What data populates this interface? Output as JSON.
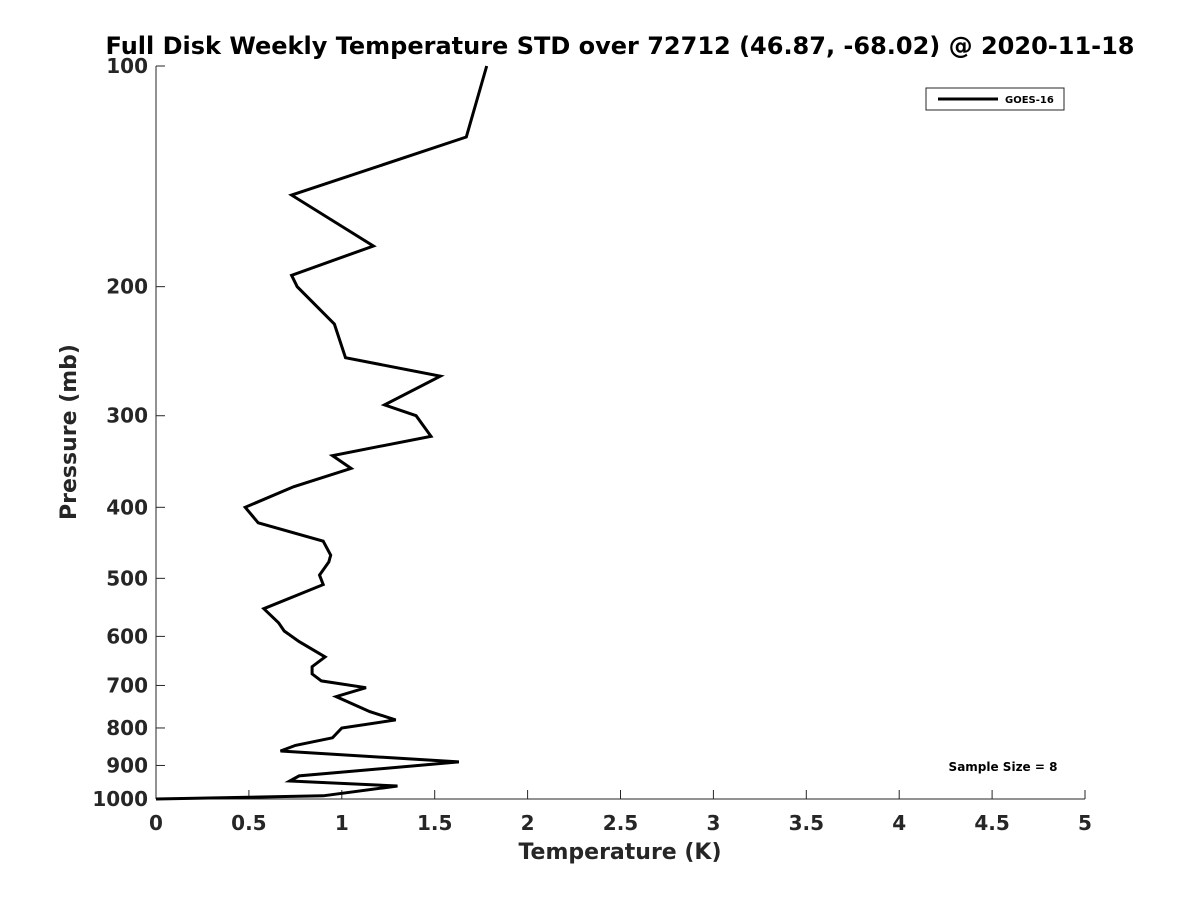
{
  "chart_data": {
    "type": "line",
    "title": "Full Disk Weekly Temperature STD over 72712 (46.87, -68.02) @ 2020-11-18",
    "xlabel": "Temperature (K)",
    "ylabel": "Pressure (mb)",
    "xlim": [
      0,
      5
    ],
    "ylim": [
      100,
      1000
    ],
    "y_scale": "log",
    "y_reversed": true,
    "x_ticks": [
      "0",
      "0.5",
      "1",
      "1.5",
      "2",
      "2.5",
      "3",
      "3.5",
      "4",
      "4.5",
      "5"
    ],
    "y_ticks": [
      "100",
      "200",
      "300",
      "400",
      "500",
      "600",
      "700",
      "800",
      "900",
      "1000"
    ],
    "grid": false,
    "legend_position": "top-right",
    "annotation": "Sample Size = 8",
    "series": [
      {
        "name": "GOES-16",
        "color": "#000000",
        "points": [
          [
            1.78,
            100
          ],
          [
            1.67,
            125
          ],
          [
            0.73,
            150
          ],
          [
            1.17,
            176
          ],
          [
            0.73,
            193
          ],
          [
            0.76,
            200
          ],
          [
            0.96,
            225
          ],
          [
            1.02,
            250
          ],
          [
            1.53,
            265
          ],
          [
            1.23,
            290
          ],
          [
            1.4,
            300
          ],
          [
            1.48,
            320
          ],
          [
            0.95,
            340
          ],
          [
            1.05,
            354
          ],
          [
            0.74,
            375
          ],
          [
            0.48,
            400
          ],
          [
            0.55,
            420
          ],
          [
            0.9,
            445
          ],
          [
            0.94,
            465
          ],
          [
            0.93,
            475
          ],
          [
            0.88,
            495
          ],
          [
            0.9,
            510
          ],
          [
            0.58,
            550
          ],
          [
            0.66,
            575
          ],
          [
            0.69,
            590
          ],
          [
            0.77,
            610
          ],
          [
            0.91,
            640
          ],
          [
            0.84,
            660
          ],
          [
            0.84,
            675
          ],
          [
            0.89,
            690
          ],
          [
            1.13,
            705
          ],
          [
            0.97,
            725
          ],
          [
            1.15,
            760
          ],
          [
            1.29,
            780
          ],
          [
            1.0,
            800
          ],
          [
            0.95,
            825
          ],
          [
            0.75,
            845
          ],
          [
            0.67,
            860
          ],
          [
            1.63,
            890
          ],
          [
            0.77,
            930
          ],
          [
            0.72,
            945
          ],
          [
            1.3,
            960
          ],
          [
            0.9,
            990
          ],
          [
            0.0,
            1000
          ]
        ]
      }
    ]
  }
}
